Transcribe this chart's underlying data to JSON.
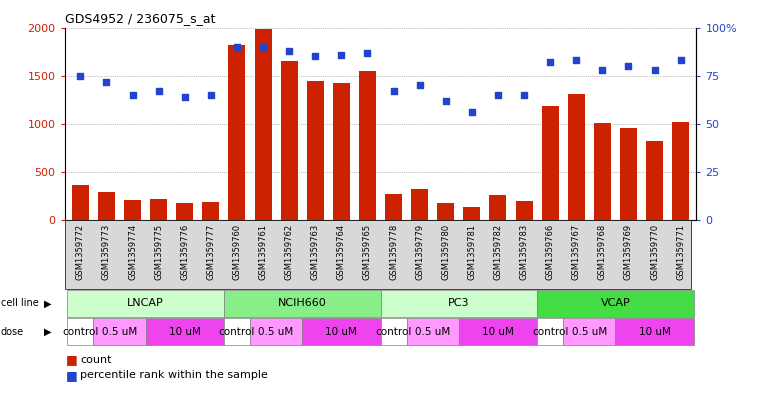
{
  "title": "GDS4952 / 236075_s_at",
  "samples": [
    "GSM1359772",
    "GSM1359773",
    "GSM1359774",
    "GSM1359775",
    "GSM1359776",
    "GSM1359777",
    "GSM1359760",
    "GSM1359761",
    "GSM1359762",
    "GSM1359763",
    "GSM1359764",
    "GSM1359765",
    "GSM1359778",
    "GSM1359779",
    "GSM1359780",
    "GSM1359781",
    "GSM1359782",
    "GSM1359783",
    "GSM1359766",
    "GSM1359767",
    "GSM1359768",
    "GSM1359769",
    "GSM1359770",
    "GSM1359771"
  ],
  "counts": [
    370,
    300,
    210,
    225,
    185,
    190,
    1820,
    1980,
    1650,
    1450,
    1430,
    1550,
    270,
    330,
    185,
    140,
    260,
    200,
    1190,
    1310,
    1010,
    960,
    820,
    1020
  ],
  "percentiles": [
    75,
    72,
    65,
    67,
    64,
    65,
    90,
    90,
    88,
    85,
    86,
    87,
    67,
    70,
    62,
    56,
    65,
    65,
    82,
    83,
    78,
    80,
    78,
    83
  ],
  "cell_line_data": [
    {
      "name": "LNCAP",
      "start": 0,
      "end": 6,
      "color": "#ccffcc"
    },
    {
      "name": "NCIH660",
      "start": 6,
      "end": 12,
      "color": "#88ee88"
    },
    {
      "name": "PC3",
      "start": 12,
      "end": 18,
      "color": "#ccffcc"
    },
    {
      "name": "VCAP",
      "start": 18,
      "end": 24,
      "color": "#44dd44"
    }
  ],
  "dose_groups": [
    {
      "label": "control",
      "color": "#ffffff",
      "start": 0,
      "end": 1
    },
    {
      "label": "0.5 uM",
      "color": "#ff99ff",
      "start": 1,
      "end": 3
    },
    {
      "label": "10 uM",
      "color": "#ee44ee",
      "start": 3,
      "end": 6
    },
    {
      "label": "control",
      "color": "#ffffff",
      "start": 6,
      "end": 7
    },
    {
      "label": "0.5 uM",
      "color": "#ff99ff",
      "start": 7,
      "end": 9
    },
    {
      "label": "10 uM",
      "color": "#ee44ee",
      "start": 9,
      "end": 12
    },
    {
      "label": "control",
      "color": "#ffffff",
      "start": 12,
      "end": 13
    },
    {
      "label": "0.5 uM",
      "color": "#ff99ff",
      "start": 13,
      "end": 15
    },
    {
      "label": "10 uM",
      "color": "#ee44ee",
      "start": 15,
      "end": 18
    },
    {
      "label": "control",
      "color": "#ffffff",
      "start": 18,
      "end": 19
    },
    {
      "label": "0.5 uM",
      "color": "#ff99ff",
      "start": 19,
      "end": 21
    },
    {
      "label": "10 uM",
      "color": "#ee44ee",
      "start": 21,
      "end": 24
    }
  ],
  "bar_color": "#cc2200",
  "dot_color": "#2244cc",
  "ylim_left": [
    0,
    2000
  ],
  "ylim_right": [
    0,
    100
  ],
  "yticks_left": [
    0,
    500,
    1000,
    1500,
    2000
  ],
  "yticks_right": [
    0,
    25,
    50,
    75,
    100
  ],
  "background_color": "#ffffff",
  "grid_color": "#888888",
  "label_bg_color": "#d8d8d8"
}
